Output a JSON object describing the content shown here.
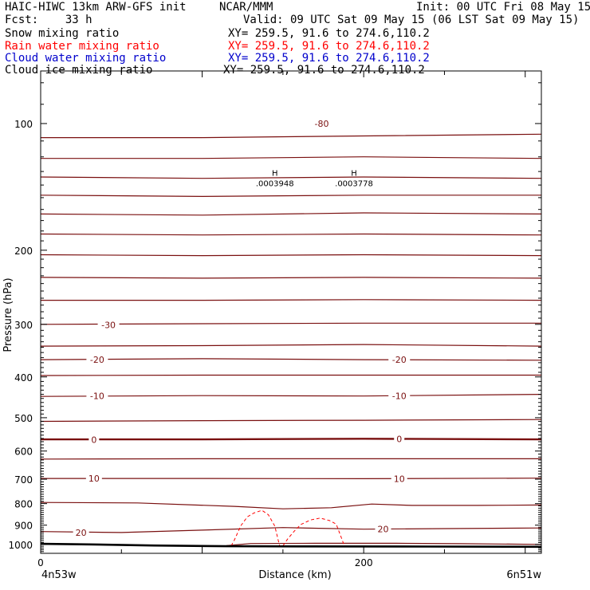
{
  "header": {
    "title": "HAIC-HIWC 13km ARW-GFS init",
    "org": "NCAR/MMM",
    "init": "Init: 00 UTC Fri 08 May 15",
    "fcst": "Fcst:    33 h",
    "valid": "Valid: 09 UTC Sat 09 May 15 (06 LST Sat 09 May 15)"
  },
  "fields": [
    {
      "name": "Snow mixing ratio",
      "xy": "XY= 259.5, 91.6 to 274.6,110.2",
      "color": "#000000"
    },
    {
      "name": "Rain water mixing ratio",
      "xy": "XY= 259.5, 91.6 to 274.6,110.2",
      "color": "#ff0000"
    },
    {
      "name": "Cloud water mixing ratio",
      "xy": "XY= 259.5, 91.6 to 274.6,110.2",
      "color": "#0000cc"
    },
    {
      "name": "Cloud ice mixing ratio",
      "xy": "XY= 259.5, 91.6 to 274.6,110.2",
      "color": "#000000"
    }
  ],
  "chart_data": {
    "type": "line",
    "ylabel": "Pressure (hPa)",
    "xlabel": "Distance (km)",
    "y_scale": "log",
    "ylim": [
      1050,
      75
    ],
    "xlim": [
      0,
      310
    ],
    "xticks": [
      "0",
      "200"
    ],
    "yticks": [
      "100",
      "200",
      "300",
      "400",
      "500",
      "600",
      "700",
      "800",
      "900",
      "1000"
    ],
    "left_location": "4n53w",
    "right_location": "6n51w",
    "high_markers": [
      {
        "label": "H",
        "value": ".0003948",
        "x_km": 145,
        "p": 133
      },
      {
        "label": "H",
        "value": ".0003778",
        "x_km": 194,
        "p": 133
      }
    ],
    "contour_labels": [
      {
        "text": "-80",
        "x_km": 174,
        "p": 100
      },
      {
        "text": "-30",
        "x_km": 42,
        "p": 301
      },
      {
        "text": "-20",
        "x_km": 35,
        "p": 364
      },
      {
        "text": "-20",
        "x_km": 222,
        "p": 364
      },
      {
        "text": "-10",
        "x_km": 35,
        "p": 444
      },
      {
        "text": "-10",
        "x_km": 222,
        "p": 444
      },
      {
        "text": "0",
        "x_km": 33,
        "p": 564
      },
      {
        "text": "0",
        "x_km": 222,
        "p": 562
      },
      {
        "text": "10",
        "x_km": 33,
        "p": 697
      },
      {
        "text": "10",
        "x_km": 222,
        "p": 698
      },
      {
        "text": "20",
        "x_km": 25,
        "p": 938
      },
      {
        "text": "20",
        "x_km": 212,
        "p": 919
      }
    ],
    "temperature_contours": [
      {
        "x": [
          0,
          100,
          200,
          310
        ],
        "p": [
          108,
          108,
          107,
          106
        ]
      },
      {
        "x": [
          0,
          100,
          200,
          310
        ],
        "p": [
          121,
          121,
          120,
          121
        ]
      },
      {
        "x": [
          0,
          100,
          200,
          310
        ],
        "p": [
          134,
          135,
          134,
          135
        ]
      },
      {
        "x": [
          0,
          100,
          200,
          310
        ],
        "p": [
          148,
          149,
          148,
          148
        ]
      },
      {
        "x": [
          0,
          100,
          200,
          310
        ],
        "p": [
          164,
          165,
          163,
          164
        ]
      },
      {
        "x": [
          0,
          100,
          200,
          310
        ],
        "p": [
          183,
          184,
          183,
          184
        ]
      },
      {
        "x": [
          0,
          100,
          200,
          310
        ],
        "p": [
          205,
          206,
          205,
          206
        ]
      },
      {
        "x": [
          0,
          100,
          200,
          310
        ],
        "p": [
          232,
          233,
          232,
          233
        ]
      },
      {
        "x": [
          0,
          100,
          200,
          310
        ],
        "p": [
          263,
          263,
          262,
          263
        ]
      },
      {
        "x": [
          0,
          100,
          200,
          310
        ],
        "p": [
          300,
          299,
          298,
          298
        ]
      },
      {
        "x": [
          0,
          100,
          200,
          310
        ],
        "p": [
          338,
          337,
          335,
          338
        ]
      },
      {
        "x": [
          0,
          100,
          200,
          310
        ],
        "p": [
          364,
          362,
          364,
          365
        ]
      },
      {
        "x": [
          0,
          100,
          200,
          310
        ],
        "p": [
          397,
          396,
          396,
          396
        ]
      },
      {
        "x": [
          0,
          100,
          200,
          310
        ],
        "p": [
          445,
          443,
          444,
          440
        ]
      },
      {
        "x": [
          0,
          100,
          200,
          310
        ],
        "p": [
          510,
          508,
          507,
          505
        ]
      },
      {
        "x": [
          0,
          100,
          200,
          310
        ],
        "p": [
          563,
          563,
          561,
          563
        ],
        "bold": true
      },
      {
        "x": [
          0,
          100,
          200,
          310
        ],
        "p": [
          627,
          626,
          626,
          626
        ]
      },
      {
        "x": [
          0,
          100,
          200,
          310
        ],
        "p": [
          697,
          697,
          698,
          696
        ]
      },
      {
        "x": [
          0,
          60,
          120,
          150,
          180,
          205,
          230,
          270,
          310
        ],
        "p": [
          795,
          797,
          812,
          823,
          818,
          802,
          808,
          808,
          806
        ]
      },
      {
        "x": [
          0,
          50,
          100,
          150,
          200,
          250,
          310
        ],
        "p": [
          932,
          937,
          925,
          912,
          920,
          917,
          914
        ]
      },
      {
        "x": [
          115,
          130,
          170,
          220,
          260,
          310
        ],
        "p": [
          1007,
          995,
          994,
          994,
          996,
          1000
        ]
      }
    ],
    "rain_water_contours": [
      {
        "x": [
          118,
          120,
          124,
          128,
          132,
          137,
          141,
          145,
          147,
          148
        ],
        "p": [
          1008,
          975,
          902,
          860,
          842,
          830,
          850,
          905,
          975,
          1008
        ]
      },
      {
        "x": [
          150,
          153,
          157,
          161,
          167,
          173,
          179,
          183,
          186,
          188
        ],
        "p": [
          1008,
          970,
          930,
          897,
          875,
          866,
          878,
          895,
          960,
          1008
        ]
      }
    ],
    "terrain": {
      "x": [
        0,
        30,
        70,
        115,
        160,
        240,
        310
      ],
      "p": [
        997,
        1000,
        1006,
        1010,
        1011,
        1012,
        1013
      ]
    }
  }
}
